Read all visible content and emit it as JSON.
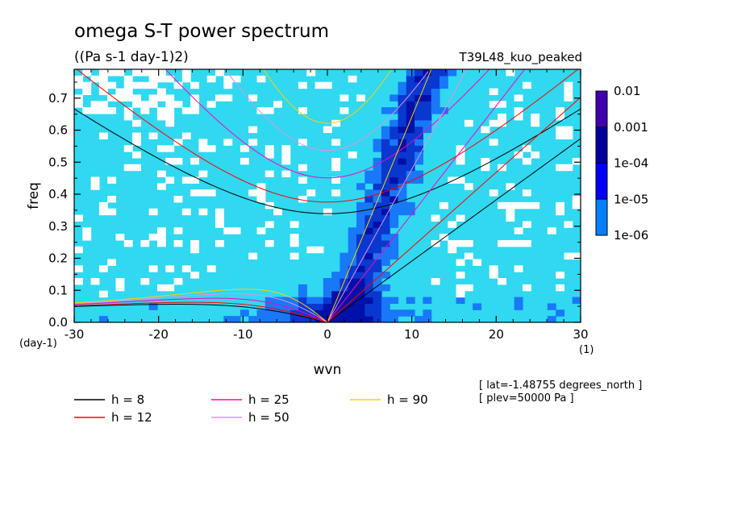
{
  "chart_data": {
    "type": "heatmap",
    "title": "omega S-T power spectrum",
    "subtitle": "((Pa s-1 day-1)2)",
    "experiment": "T39L48_kuo_peaked",
    "xlabel": "wvn",
    "ylabel": "freq",
    "x_unit_label": "(1)",
    "y_unit_label": "(day-1)",
    "xlim": [
      -30,
      30
    ],
    "ylim": [
      0,
      0.79
    ],
    "x_ticks": [
      "-30",
      "-20",
      "-10",
      "0",
      "10",
      "20",
      "30"
    ],
    "x_tick_values": [
      -30,
      -20,
      -10,
      0,
      10,
      20,
      30
    ],
    "y_ticks": [
      "0.0",
      "0.1",
      "0.2",
      "0.3",
      "0.4",
      "0.5",
      "0.6",
      "0.7"
    ],
    "y_tick_values": [
      0,
      0.1,
      0.2,
      0.3,
      0.4,
      0.5,
      0.6,
      0.7
    ],
    "colorbar": {
      "labels": [
        "1e-06",
        "1e-05",
        "1e-04",
        "0.001",
        "0.01"
      ],
      "levels": [
        1e-06,
        1e-05,
        0.0001,
        0.001,
        0.01
      ],
      "colors": [
        "#00ffff",
        "#0080ff",
        "#0000ff",
        "#0000a0",
        "#4000b0"
      ]
    },
    "background_color": "#30d8f0",
    "heatmap_colors": {
      "white": "#ffffff",
      "level1": "#30d8f0",
      "level2": "#1878f8",
      "level3": "#0838d0",
      "level4": "#0010a8"
    },
    "equivalent_depths": [
      {
        "label": "h =  8",
        "h": 8,
        "color": "#000000"
      },
      {
        "label": "h = 12",
        "h": 12,
        "color": "#ff0000"
      },
      {
        "label": "h = 25",
        "h": 25,
        "color": "#ff00c0"
      },
      {
        "label": "h = 50",
        "h": 50,
        "color": "#e090f0"
      },
      {
        "label": "h = 90",
        "h": 90,
        "color": "#ffd000"
      }
    ],
    "annotations": [
      "[ lat=-1.48755 degrees_north ]",
      "[ plev=50000 Pa ]"
    ]
  }
}
